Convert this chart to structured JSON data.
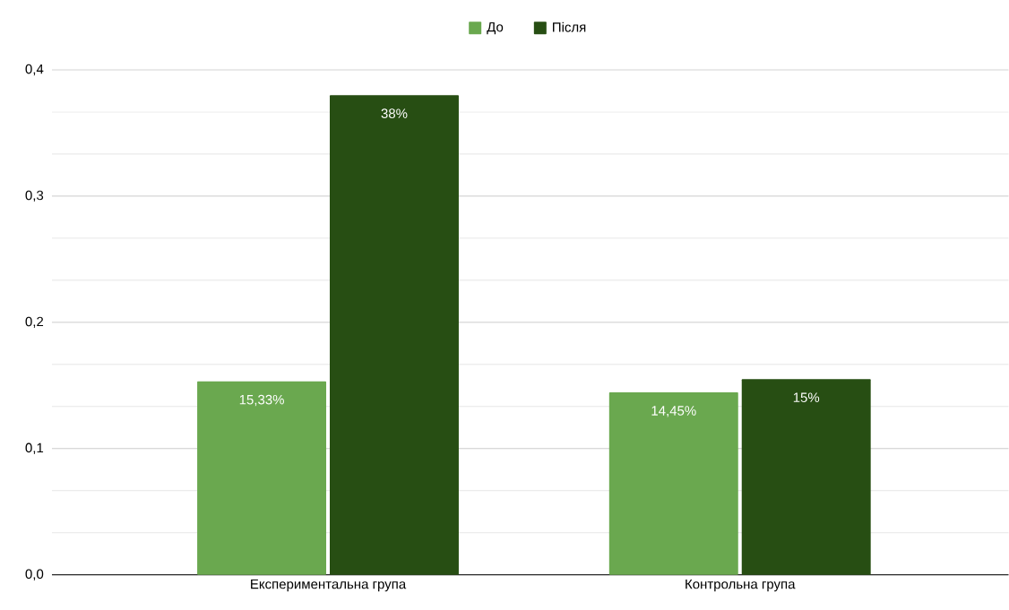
{
  "chart_data": {
    "type": "bar",
    "categories": [
      "Експериментальна група",
      "Контрольна група"
    ],
    "series": [
      {
        "name": "До",
        "color": "#6aa84f",
        "values": [
          0.1533,
          0.1445
        ],
        "value_labels": [
          "15,33%",
          "14,45%"
        ]
      },
      {
        "name": "Після",
        "color": "#274e13",
        "values": [
          0.38,
          0.155
        ],
        "value_labels": [
          "38%",
          "15%"
        ]
      }
    ],
    "ylim": [
      0,
      0.4
    ],
    "yticks": [
      {
        "value": 0,
        "label": "0,0"
      },
      {
        "value": 0.1,
        "label": "0,1"
      },
      {
        "value": 0.2,
        "label": "0,2"
      },
      {
        "value": 0.3,
        "label": "0,3"
      },
      {
        "value": 0.4,
        "label": "0,4"
      }
    ],
    "grid": "y",
    "legend": "top"
  }
}
